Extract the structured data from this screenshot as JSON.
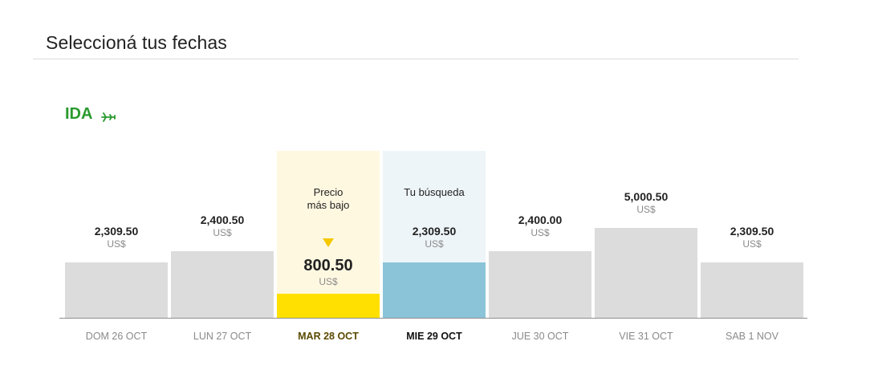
{
  "header": {
    "title": "Seleccioná tus fechas"
  },
  "direction": {
    "label": "IDA",
    "icon": "plane-icon",
    "color": "#2a9a2e"
  },
  "notes": {
    "lowest": "Precio\nmás bajo",
    "selected": "Tu búsqueda"
  },
  "colors": {
    "bar": "#dcdcdc",
    "lowest_bar": "#ffe000",
    "lowest_bg": "#fff8e1",
    "selected_bar": "#8bc4d9",
    "selected_bg": "#eef5f8",
    "arrow": "#f5c800"
  },
  "days": [
    {
      "date": "DOM 26 OCT",
      "price": "2,309.50",
      "currency": "US$",
      "amount": 2309.5,
      "state": "normal"
    },
    {
      "date": "LUN 27 OCT",
      "price": "2,400.50",
      "currency": "US$",
      "amount": 2400.5,
      "state": "normal"
    },
    {
      "date": "MAR 28 OCT",
      "price": "800.50",
      "currency": "US$",
      "amount": 800.5,
      "state": "lowest"
    },
    {
      "date": "MIE 29 OCT",
      "price": "2,309.50",
      "currency": "US$",
      "amount": 2309.5,
      "state": "selected"
    },
    {
      "date": "JUE 30 OCT",
      "price": "2,400.00",
      "currency": "US$",
      "amount": 2400.0,
      "state": "normal"
    },
    {
      "date": "VIE 31 OCT",
      "price": "5,000.50",
      "currency": "US$",
      "amount": 5000.5,
      "state": "normal"
    },
    {
      "date": "SAB 1 NOV",
      "price": "2,309.50",
      "currency": "US$",
      "amount": 2309.5,
      "state": "normal"
    }
  ]
}
